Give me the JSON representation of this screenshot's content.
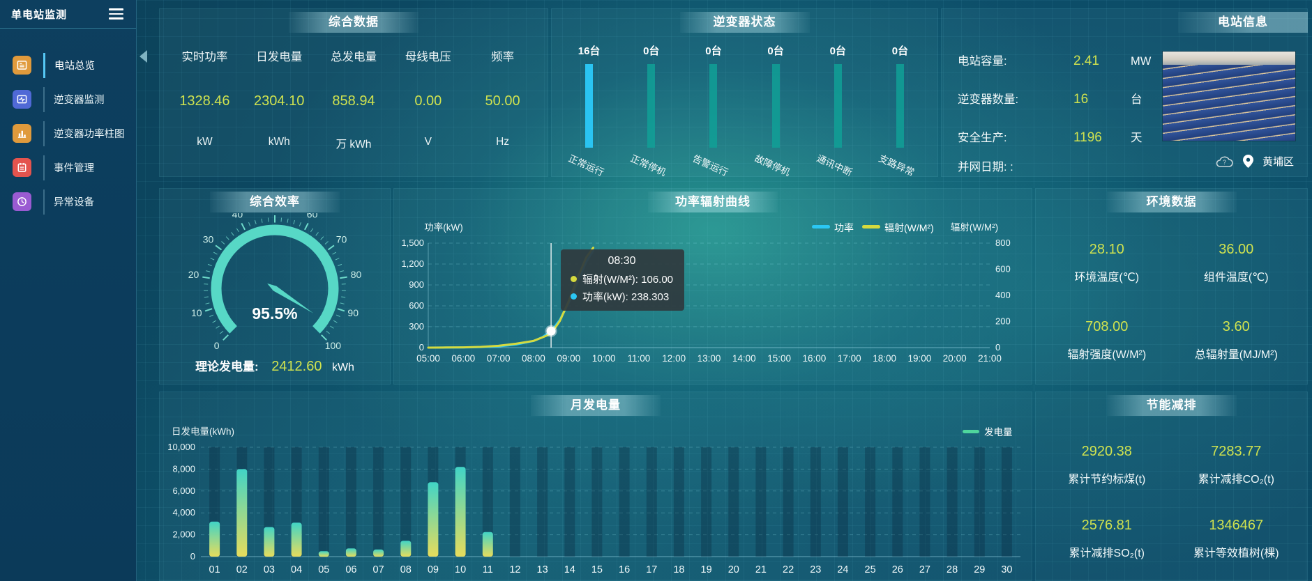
{
  "app": {
    "title": "单电站监测"
  },
  "sidebar": {
    "items": [
      {
        "label": "电站总览",
        "color": "#e09a3c",
        "active": true
      },
      {
        "label": "逆变器监测",
        "color": "#5069d6",
        "active": false
      },
      {
        "label": "逆变器功率柱图",
        "color": "#e09a3c",
        "active": false
      },
      {
        "label": "事件管理",
        "color": "#e4544e",
        "active": false
      },
      {
        "label": "异常设备",
        "color": "#9a5bd2",
        "active": false
      }
    ]
  },
  "panels": {
    "summary": {
      "title": "综合数据",
      "stats": [
        {
          "label": "实时功率",
          "value": "1328.46",
          "unit": "kW"
        },
        {
          "label": "日发电量",
          "value": "2304.10",
          "unit": "kWh"
        },
        {
          "label": "总发电量",
          "value": "858.94",
          "unit": "万 kWh"
        },
        {
          "label": "母线电压",
          "value": "0.00",
          "unit": "V"
        },
        {
          "label": "频率",
          "value": "50.00",
          "unit": "Hz"
        }
      ]
    },
    "inverter": {
      "title": "逆变器状态",
      "items": [
        {
          "count": "16台",
          "label": "正常运行",
          "active": true
        },
        {
          "count": "0台",
          "label": "正常停机",
          "active": false
        },
        {
          "count": "0台",
          "label": "告警运行",
          "active": false
        },
        {
          "count": "0台",
          "label": "故障停机",
          "active": false
        },
        {
          "count": "0台",
          "label": "通讯中断",
          "active": false
        },
        {
          "count": "0台",
          "label": "支路异常",
          "active": false
        }
      ]
    },
    "station": {
      "title": "电站信息",
      "rows": [
        {
          "label": "电站容量:",
          "value": "2.41",
          "unit": "MW"
        },
        {
          "label": "逆变器数量:",
          "value": "16",
          "unit": "台"
        },
        {
          "label": "安全生产:",
          "value": "1196",
          "unit": "天"
        },
        {
          "label": "并网日期: :",
          "value": "",
          "unit": ""
        }
      ],
      "location": "黄埔区"
    },
    "efficiency": {
      "title": "综合效率",
      "gauge_label": "95.5%",
      "theory_label": "理论发电量:",
      "theory_value": "2412.60",
      "theory_unit": "kWh"
    },
    "environment": {
      "title": "环境数据",
      "cells": [
        {
          "value": "28.10",
          "label": "环境温度(℃)"
        },
        {
          "value": "36.00",
          "label": "组件温度(℃)"
        },
        {
          "value": "708.00",
          "label": "辐射强度(W/M²)"
        },
        {
          "value": "3.60",
          "label": "总辐射量(MJ/M²)"
        }
      ]
    },
    "saving": {
      "title": "节能减排",
      "cells": [
        {
          "value": "2920.38",
          "label": "累计节约标煤(t)"
        },
        {
          "value": "7283.77",
          "label": "累计减排CO₂(t)"
        },
        {
          "value": "2576.81",
          "label": "累计减排SO₂(t)"
        },
        {
          "value": "1346467",
          "label": "累计等效植树(棵)"
        }
      ]
    }
  },
  "chart_data": [
    {
      "type": "gauge",
      "title": "综合效率",
      "value": 95.5,
      "min": 0,
      "max": 100,
      "unit": "%",
      "tick_step": 10
    },
    {
      "type": "line",
      "title": "功率辐射曲线",
      "ylabel_left": "功率(kW)",
      "ylabel_right": "辐射(W/M²)",
      "ylim_left": [
        0,
        1500
      ],
      "ylim_right": [
        0,
        800
      ],
      "x_ticks": [
        "05:00",
        "06:00",
        "07:00",
        "08:00",
        "09:00",
        "10:00",
        "11:00",
        "12:00",
        "13:00",
        "14:00",
        "15:00",
        "16:00",
        "17:00",
        "18:00",
        "19:00",
        "20:00",
        "21:00"
      ],
      "legend": [
        "功率",
        "辐射(W/M²)"
      ],
      "series": [
        {
          "name": "功率",
          "axis": "left",
          "color": "#2bc7f4",
          "points": [
            [
              "05:00",
              0
            ],
            [
              "05:30",
              1
            ],
            [
              "06:00",
              3
            ],
            [
              "06:30",
              8
            ],
            [
              "07:00",
              18
            ],
            [
              "07:30",
              45
            ],
            [
              "08:00",
              95
            ],
            [
              "08:15",
              150
            ],
            [
              "08:30",
              238.303
            ],
            [
              "08:45",
              400
            ],
            [
              "09:00",
              640
            ],
            [
              "09:15",
              940
            ],
            [
              "09:30",
              1230
            ],
            [
              "09:42",
              1390
            ]
          ]
        },
        {
          "name": "辐射(W/M²)",
          "axis": "right",
          "color": "#d5da3e",
          "points": [
            [
              "05:00",
              0
            ],
            [
              "05:30",
              1
            ],
            [
              "06:00",
              2
            ],
            [
              "06:30",
              6
            ],
            [
              "07:00",
              14
            ],
            [
              "07:30",
              30
            ],
            [
              "08:00",
              52
            ],
            [
              "08:15",
              78
            ],
            [
              "08:30",
              106
            ],
            [
              "08:45",
              205
            ],
            [
              "09:00",
              355
            ],
            [
              "09:15",
              530
            ],
            [
              "09:30",
              690
            ],
            [
              "09:42",
              765
            ]
          ]
        }
      ],
      "tooltip": {
        "time": "08:30",
        "items": [
          {
            "name": "辐射(W/M²)",
            "value": "106.00",
            "color": "#d5da3e"
          },
          {
            "name": "功率(kW)",
            "value": "238.303",
            "color": "#2bc7f4"
          }
        ]
      }
    },
    {
      "type": "bar",
      "title": "月发电量",
      "ylabel": "日发电量(kWh)",
      "ylim": [
        0,
        10000
      ],
      "tick_step": 2000,
      "legend": "发电量",
      "categories": [
        "01",
        "02",
        "03",
        "04",
        "05",
        "06",
        "07",
        "08",
        "09",
        "10",
        "11",
        "12",
        "13",
        "14",
        "15",
        "16",
        "17",
        "18",
        "19",
        "20",
        "21",
        "22",
        "23",
        "24",
        "25",
        "26",
        "27",
        "28",
        "29",
        "30"
      ],
      "values": [
        3200,
        8000,
        2700,
        3100,
        500,
        750,
        650,
        1450,
        6800,
        8200,
        2250,
        0,
        0,
        0,
        0,
        0,
        0,
        0,
        0,
        0,
        0,
        0,
        0,
        0,
        0,
        0,
        0,
        0,
        0,
        0
      ]
    },
    {
      "type": "bar",
      "title": "逆变器状态",
      "unit": "台",
      "categories": [
        "正常运行",
        "正常停机",
        "告警运行",
        "故障停机",
        "通讯中断",
        "支路异常"
      ],
      "values": [
        16,
        0,
        0,
        0,
        0,
        0
      ]
    }
  ]
}
